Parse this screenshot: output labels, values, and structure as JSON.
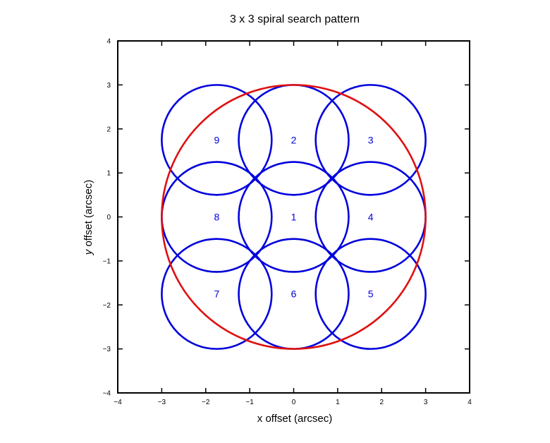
{
  "chart_data": {
    "type": "scatter",
    "title": "3 x 3 spiral search pattern",
    "xlabel": "x offset (arcsec)",
    "ylabel_italic": "y",
    "ylabel_rest": " offset (arcsec)",
    "xlim": [
      -4,
      4
    ],
    "ylim": [
      -4,
      4
    ],
    "xticks": [
      -4,
      -3,
      -2,
      -1,
      0,
      1,
      2,
      3,
      4
    ],
    "yticks": [
      -4,
      -3,
      -2,
      -1,
      0,
      1,
      2,
      3,
      4
    ],
    "xtick_labels": [
      "−4",
      "−3",
      "−2",
      "−1",
      "0",
      "1",
      "2",
      "3",
      "4"
    ],
    "ytick_labels": [
      "−4",
      "−3",
      "−2",
      "−1",
      "0",
      "1",
      "2",
      "3",
      "4"
    ],
    "grid": false,
    "colors": {
      "search_circles": "#0000dd",
      "envelope": "#e01010",
      "axes": "#000000"
    },
    "envelope": {
      "x": 0,
      "y": 0,
      "r": 3
    },
    "search_radius": 1.25,
    "positions": [
      {
        "label": "1",
        "x": 0,
        "y": 0
      },
      {
        "label": "2",
        "x": 0,
        "y": 1.75
      },
      {
        "label": "3",
        "x": 1.75,
        "y": 1.75
      },
      {
        "label": "4",
        "x": 1.75,
        "y": 0
      },
      {
        "label": "5",
        "x": 1.75,
        "y": -1.75
      },
      {
        "label": "6",
        "x": 0,
        "y": -1.75
      },
      {
        "label": "7",
        "x": -1.75,
        "y": -1.75
      },
      {
        "label": "8",
        "x": -1.75,
        "y": 0
      },
      {
        "label": "9",
        "x": -1.75,
        "y": 1.75
      }
    ]
  }
}
